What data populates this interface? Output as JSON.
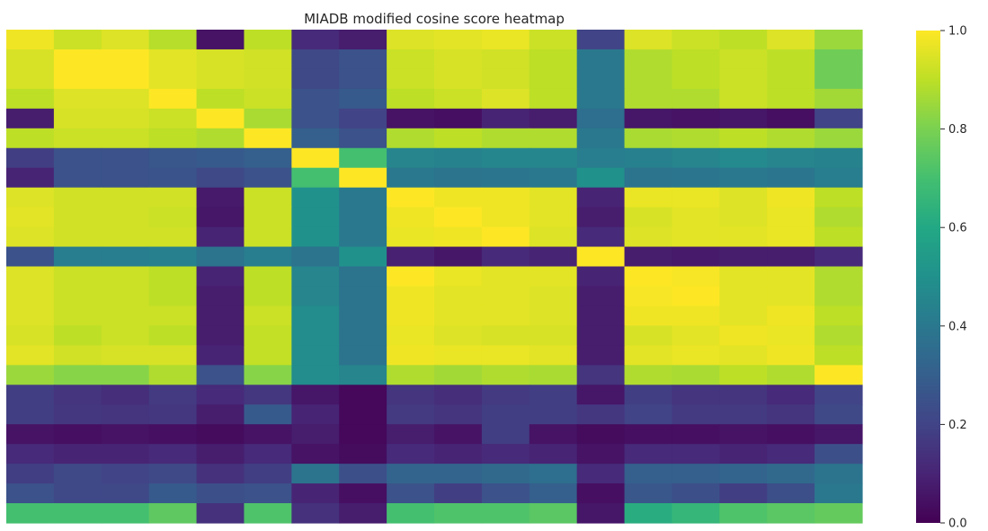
{
  "chart_data": {
    "type": "heatmap",
    "title": "MIADB modified cosine score heatmap",
    "colormap": "viridis",
    "vmin": 0.0,
    "vmax": 1.0,
    "rows": 25,
    "cols": 18,
    "colorbar_ticks": [
      "0.0",
      "0.2",
      "0.4",
      "0.6",
      "0.8",
      "1.0"
    ],
    "values": [
      [
        0.98,
        0.92,
        0.95,
        0.89,
        0.05,
        0.9,
        0.12,
        0.08,
        0.95,
        0.96,
        0.97,
        0.92,
        0.2,
        0.95,
        0.92,
        0.9,
        0.95,
        0.85
      ],
      [
        0.94,
        1.0,
        1.0,
        0.96,
        0.94,
        0.93,
        0.22,
        0.25,
        0.92,
        0.94,
        0.93,
        0.9,
        0.4,
        0.88,
        0.9,
        0.92,
        0.9,
        0.78
      ],
      [
        0.94,
        1.0,
        1.0,
        0.96,
        0.94,
        0.93,
        0.22,
        0.25,
        0.92,
        0.94,
        0.93,
        0.9,
        0.4,
        0.88,
        0.9,
        0.92,
        0.9,
        0.78
      ],
      [
        0.9,
        0.95,
        0.95,
        1.0,
        0.9,
        0.92,
        0.25,
        0.28,
        0.9,
        0.92,
        0.95,
        0.9,
        0.4,
        0.88,
        0.88,
        0.92,
        0.9,
        0.86
      ],
      [
        0.08,
        0.94,
        0.94,
        0.92,
        1.0,
        0.87,
        0.25,
        0.2,
        0.05,
        0.04,
        0.1,
        0.08,
        0.36,
        0.06,
        0.05,
        0.06,
        0.04,
        0.2
      ],
      [
        0.9,
        0.92,
        0.92,
        0.9,
        0.88,
        1.0,
        0.3,
        0.25,
        0.88,
        0.9,
        0.88,
        0.88,
        0.4,
        0.87,
        0.88,
        0.9,
        0.88,
        0.85
      ],
      [
        0.18,
        0.25,
        0.25,
        0.27,
        0.28,
        0.3,
        1.0,
        0.7,
        0.45,
        0.44,
        0.46,
        0.46,
        0.42,
        0.43,
        0.45,
        0.47,
        0.45,
        0.44
      ],
      [
        0.1,
        0.25,
        0.25,
        0.26,
        0.22,
        0.25,
        0.7,
        1.0,
        0.4,
        0.38,
        0.39,
        0.4,
        0.5,
        0.38,
        0.39,
        0.4,
        0.39,
        0.42
      ],
      [
        0.95,
        0.93,
        0.93,
        0.93,
        0.07,
        0.92,
        0.5,
        0.4,
        1.0,
        0.98,
        0.98,
        0.96,
        0.1,
        0.97,
        0.97,
        0.95,
        0.98,
        0.9
      ],
      [
        0.96,
        0.93,
        0.93,
        0.92,
        0.06,
        0.92,
        0.5,
        0.4,
        0.98,
        1.0,
        0.98,
        0.96,
        0.08,
        0.94,
        0.96,
        0.95,
        0.97,
        0.88
      ],
      [
        0.95,
        0.93,
        0.93,
        0.93,
        0.1,
        0.92,
        0.5,
        0.4,
        0.97,
        0.98,
        1.0,
        0.95,
        0.12,
        0.95,
        0.96,
        0.96,
        0.97,
        0.9
      ],
      [
        0.25,
        0.42,
        0.42,
        0.43,
        0.38,
        0.42,
        0.38,
        0.5,
        0.09,
        0.06,
        0.12,
        0.1,
        1.0,
        0.08,
        0.07,
        0.08,
        0.08,
        0.12
      ],
      [
        0.95,
        0.92,
        0.92,
        0.9,
        0.1,
        0.9,
        0.45,
        0.38,
        1.0,
        0.97,
        0.96,
        0.96,
        0.1,
        1.0,
        0.99,
        0.96,
        0.96,
        0.88
      ],
      [
        0.95,
        0.92,
        0.92,
        0.9,
        0.08,
        0.9,
        0.45,
        0.38,
        0.98,
        0.96,
        0.96,
        0.95,
        0.08,
        0.99,
        1.0,
        0.96,
        0.96,
        0.88
      ],
      [
        0.95,
        0.92,
        0.92,
        0.92,
        0.08,
        0.92,
        0.48,
        0.38,
        0.98,
        0.96,
        0.96,
        0.95,
        0.08,
        0.98,
        0.98,
        0.96,
        0.98,
        0.9
      ],
      [
        0.94,
        0.9,
        0.92,
        0.9,
        0.08,
        0.91,
        0.48,
        0.38,
        0.97,
        0.95,
        0.94,
        0.94,
        0.08,
        0.94,
        0.96,
        0.98,
        0.97,
        0.88
      ],
      [
        0.96,
        0.93,
        0.94,
        0.94,
        0.1,
        0.91,
        0.48,
        0.38,
        0.98,
        0.97,
        0.97,
        0.96,
        0.08,
        0.96,
        0.97,
        0.96,
        0.98,
        0.9
      ],
      [
        0.85,
        0.82,
        0.82,
        0.88,
        0.25,
        0.82,
        0.48,
        0.45,
        0.88,
        0.86,
        0.88,
        0.87,
        0.15,
        0.88,
        0.87,
        0.9,
        0.88,
        1.0
      ],
      [
        0.18,
        0.15,
        0.13,
        0.17,
        0.12,
        0.16,
        0.06,
        0.02,
        0.15,
        0.13,
        0.17,
        0.18,
        0.06,
        0.18,
        0.15,
        0.15,
        0.12,
        0.2
      ],
      [
        0.18,
        0.16,
        0.15,
        0.16,
        0.08,
        0.28,
        0.1,
        0.02,
        0.17,
        0.15,
        0.18,
        0.18,
        0.16,
        0.2,
        0.17,
        0.17,
        0.15,
        0.22
      ],
      [
        0.05,
        0.04,
        0.05,
        0.04,
        0.03,
        0.05,
        0.08,
        0.02,
        0.08,
        0.05,
        0.18,
        0.05,
        0.03,
        0.04,
        0.04,
        0.05,
        0.04,
        0.06
      ],
      [
        0.12,
        0.1,
        0.1,
        0.12,
        0.08,
        0.12,
        0.05,
        0.03,
        0.12,
        0.1,
        0.12,
        0.1,
        0.05,
        0.12,
        0.12,
        0.1,
        0.12,
        0.24
      ],
      [
        0.18,
        0.22,
        0.2,
        0.22,
        0.14,
        0.18,
        0.38,
        0.24,
        0.32,
        0.32,
        0.34,
        0.36,
        0.12,
        0.3,
        0.3,
        0.32,
        0.34,
        0.38
      ],
      [
        0.25,
        0.22,
        0.22,
        0.28,
        0.24,
        0.25,
        0.1,
        0.04,
        0.25,
        0.18,
        0.25,
        0.3,
        0.04,
        0.27,
        0.24,
        0.18,
        0.24,
        0.4
      ],
      [
        0.7,
        0.7,
        0.7,
        0.75,
        0.14,
        0.72,
        0.14,
        0.08,
        0.7,
        0.72,
        0.72,
        0.74,
        0.06,
        0.62,
        0.66,
        0.72,
        0.74,
        0.76
      ]
    ]
  }
}
